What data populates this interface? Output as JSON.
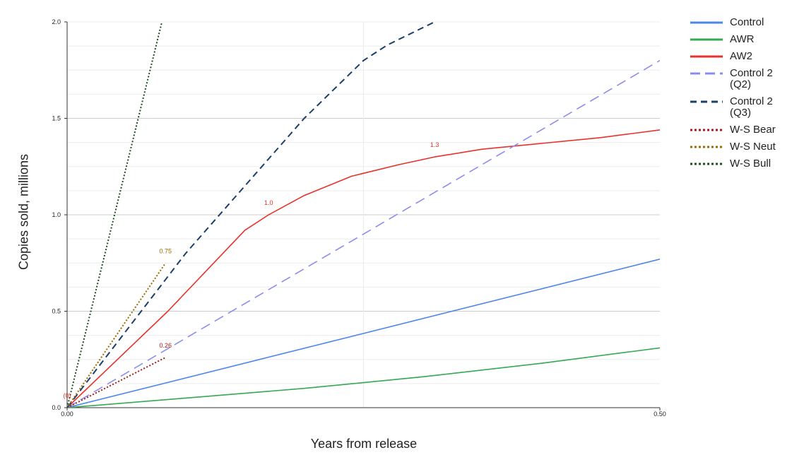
{
  "chart_data": {
    "type": "line",
    "title": "",
    "xlabel": "Years from release",
    "ylabel": "Copies sold, millions",
    "xlim": [
      0,
      0.5
    ],
    "ylim": [
      0,
      2.0
    ],
    "x_ticks": [
      "0.00",
      "0.50"
    ],
    "y_ticks": [
      "0.0",
      "0.5",
      "1.0",
      "1.5",
      "2.0"
    ],
    "grid": true,
    "legend_position": "right",
    "series": [
      {
        "name": "Control",
        "color": "#4a86e8",
        "dash": "solid",
        "x": [
          0,
          0.5
        ],
        "y": [
          0,
          0.77
        ]
      },
      {
        "name": "AWR",
        "color": "#34a853",
        "dash": "solid",
        "x": [
          0,
          0.1,
          0.2,
          0.3,
          0.4,
          0.5
        ],
        "y": [
          0,
          0.05,
          0.1,
          0.16,
          0.23,
          0.31
        ]
      },
      {
        "name": "AW2",
        "color": "#e8312a",
        "dash": "solid",
        "x": [
          0,
          0.085,
          0.15,
          0.17,
          0.2,
          0.24,
          0.28,
          0.31,
          0.35,
          0.4,
          0.45,
          0.5
        ],
        "y": [
          0,
          0.5,
          0.92,
          1.0,
          1.1,
          1.2,
          1.26,
          1.3,
          1.34,
          1.37,
          1.4,
          1.44
        ]
      },
      {
        "name": "Control 2 (Q2)",
        "color": "#8c8cf0",
        "dash": "long",
        "x": [
          0,
          0.5
        ],
        "y": [
          0,
          1.8
        ]
      },
      {
        "name": "Control 2 (Q3)",
        "color": "#1b3f6b",
        "dash": "dash",
        "x": [
          0,
          0.1,
          0.2,
          0.25,
          0.27,
          0.3,
          0.31
        ],
        "y": [
          0,
          0.8,
          1.5,
          1.8,
          1.88,
          1.97,
          2.0
        ]
      },
      {
        "name": "W-S Bear",
        "color": "#a61c1c",
        "dash": "dot",
        "x": [
          0,
          0.083
        ],
        "y": [
          0,
          0.26
        ]
      },
      {
        "name": "W-S Neut",
        "color": "#9c6b00",
        "dash": "dot",
        "x": [
          0,
          0.083
        ],
        "y": [
          0,
          0.75
        ]
      },
      {
        "name": "W-S Bull",
        "color": "#1e4d1e",
        "dash": "dot",
        "x": [
          0,
          0.08
        ],
        "y": [
          0,
          2.0
        ]
      }
    ],
    "annotations": [
      {
        "text": "1.0",
        "x": 0.17,
        "y": 1.0,
        "color": "#e8312a"
      },
      {
        "text": "1.3",
        "x": 0.31,
        "y": 1.3,
        "color": "#e8312a"
      },
      {
        "text": "0.75",
        "x": 0.083,
        "y": 0.75,
        "color": "#9c6b00"
      },
      {
        "text": "0.26",
        "x": 0.083,
        "y": 0.26,
        "color": "#a61c1c"
      },
      {
        "text": "(0)",
        "x": 0,
        "y": 0,
        "color": "#e8312a"
      }
    ]
  }
}
